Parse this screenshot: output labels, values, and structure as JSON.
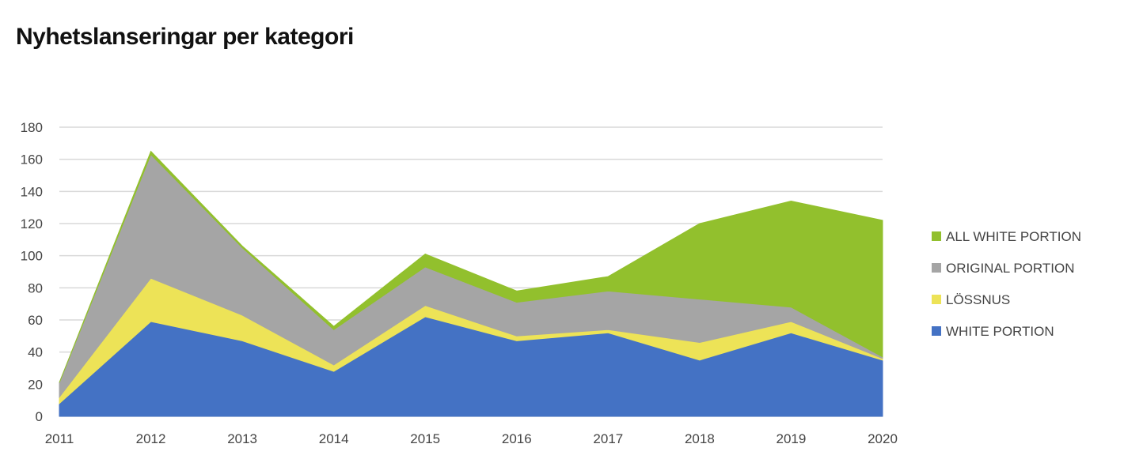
{
  "title": "Nyhetslanseringar per kategori",
  "chart_data": {
    "type": "area",
    "stacked": true,
    "x": [
      "2011",
      "2012",
      "2013",
      "2014",
      "2015",
      "2016",
      "2017",
      "2018",
      "2019",
      "2020"
    ],
    "ylim": [
      0,
      180
    ],
    "yticks": [
      0,
      20,
      40,
      60,
      80,
      100,
      120,
      140,
      160,
      180
    ],
    "grid": true,
    "legend_position": "right",
    "series": [
      {
        "name": "WHITE PORTION",
        "color": "#4472c4",
        "values": [
          8,
          59,
          47,
          28,
          62,
          47,
          52,
          35,
          52,
          35
        ]
      },
      {
        "name": "LÖSSNUS",
        "color": "#ede357",
        "values": [
          4,
          27,
          16,
          4,
          7,
          3,
          2,
          11,
          7,
          1
        ]
      },
      {
        "name": "ORIGINAL PORTION",
        "color": "#a5a5a5",
        "values": [
          9,
          77,
          42,
          22,
          24,
          21,
          24,
          27,
          9,
          1
        ]
      },
      {
        "name": "ALL WHITE PORTION",
        "color": "#92c02d",
        "values": [
          0,
          2,
          1,
          2,
          8,
          7,
          9,
          47,
          66,
          85
        ]
      }
    ]
  }
}
